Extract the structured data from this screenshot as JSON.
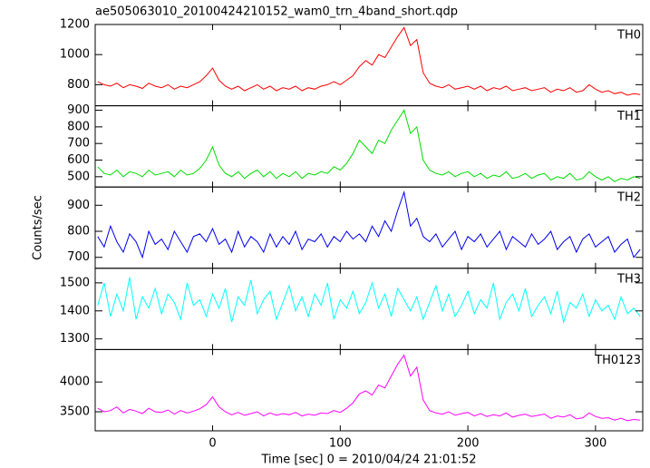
{
  "chart_data": {
    "type": "line",
    "title": "ae505063010_20100424210152_wam0_trn_4band_short.qdp",
    "x_label": "Time [sec] 0 = 2010/04/24 21:01:52",
    "y_label": "Counts/sec",
    "xlim": [
      -92,
      337
    ],
    "xticks": [
      0,
      100,
      200,
      300
    ],
    "x": [
      -90,
      -85,
      -80,
      -75,
      -70,
      -65,
      -60,
      -55,
      -50,
      -45,
      -40,
      -35,
      -30,
      -25,
      -20,
      -15,
      -10,
      -5,
      0,
      5,
      10,
      15,
      20,
      25,
      30,
      35,
      40,
      45,
      50,
      55,
      60,
      65,
      70,
      75,
      80,
      85,
      90,
      95,
      100,
      105,
      110,
      115,
      120,
      125,
      130,
      135,
      140,
      145,
      150,
      155,
      160,
      165,
      170,
      175,
      180,
      185,
      190,
      195,
      200,
      205,
      210,
      215,
      220,
      225,
      230,
      235,
      240,
      245,
      250,
      255,
      260,
      265,
      270,
      275,
      280,
      285,
      290,
      295,
      300,
      305,
      310,
      315,
      320,
      325,
      330,
      335
    ],
    "panels": [
      {
        "name": "TH0",
        "color": "#ff0000",
        "ylim": [
          660,
          1200
        ],
        "yticks": [
          800,
          1000,
          1200
        ],
        "values": [
          820,
          800,
          790,
          810,
          780,
          800,
          790,
          775,
          810,
          790,
          780,
          800,
          770,
          790,
          780,
          800,
          820,
          860,
          910,
          830,
          790,
          770,
          790,
          760,
          780,
          800,
          770,
          790,
          760,
          780,
          770,
          790,
          760,
          780,
          770,
          790,
          800,
          820,
          800,
          830,
          860,
          920,
          960,
          930,
          1000,
          980,
          1050,
          1120,
          1180,
          1060,
          1100,
          880,
          810,
          790,
          780,
          800,
          770,
          780,
          790,
          770,
          790,
          760,
          780,
          770,
          790,
          760,
          770,
          780,
          760,
          770,
          780,
          750,
          770,
          760,
          780,
          750,
          760,
          800,
          770,
          750,
          760,
          740,
          750,
          730,
          740,
          735
        ]
      },
      {
        "name": "TH1",
        "color": "#00dd00",
        "ylim": [
          438,
          927
        ],
        "yticks": [
          500,
          600,
          700,
          800,
          900
        ],
        "values": [
          560,
          520,
          510,
          540,
          500,
          530,
          520,
          500,
          540,
          510,
          520,
          530,
          500,
          540,
          510,
          520,
          550,
          600,
          680,
          570,
          520,
          500,
          530,
          490,
          520,
          540,
          500,
          530,
          490,
          520,
          500,
          530,
          490,
          520,
          510,
          530,
          520,
          560,
          540,
          580,
          640,
          720,
          680,
          640,
          720,
          700,
          780,
          840,
          900,
          760,
          800,
          600,
          540,
          520,
          510,
          530,
          500,
          520,
          530,
          500,
          520,
          490,
          510,
          500,
          530,
          490,
          500,
          520,
          490,
          510,
          520,
          480,
          500,
          490,
          520,
          480,
          490,
          530,
          500,
          480,
          500,
          470,
          490,
          480,
          500,
          490
        ]
      },
      {
        "name": "TH2",
        "color": "#0000ee",
        "ylim": [
          658,
          970
        ],
        "yticks": [
          700,
          800,
          900
        ],
        "values": [
          780,
          740,
          820,
          760,
          720,
          790,
          760,
          700,
          800,
          750,
          770,
          730,
          800,
          760,
          720,
          780,
          790,
          760,
          810,
          750,
          770,
          720,
          800,
          740,
          780,
          760,
          720,
          790,
          740,
          780,
          750,
          800,
          730,
          770,
          760,
          790,
          740,
          780,
          760,
          800,
          770,
          790,
          760,
          820,
          780,
          840,
          800,
          880,
          950,
          820,
          850,
          780,
          760,
          790,
          740,
          770,
          800,
          730,
          780,
          760,
          790,
          740,
          770,
          800,
          730,
          780,
          760,
          740,
          790,
          750,
          770,
          800,
          730,
          760,
          780,
          720,
          770,
          790,
          740,
          760,
          780,
          720,
          750,
          770,
          700,
          730
        ]
      },
      {
        "name": "TH3",
        "color": "#00ffff",
        "ylim": [
          1262,
          1552
        ],
        "yticks": [
          1300,
          1400,
          1500
        ],
        "values": [
          1420,
          1500,
          1380,
          1460,
          1400,
          1520,
          1370,
          1450,
          1410,
          1480,
          1390,
          1460,
          1430,
          1370,
          1500,
          1420,
          1440,
          1380,
          1460,
          1410,
          1480,
          1360,
          1450,
          1420,
          1510,
          1390,
          1440,
          1470,
          1370,
          1430,
          1490,
          1400,
          1450,
          1380,
          1460,
          1420,
          1500,
          1370,
          1440,
          1410,
          1470,
          1390,
          1430,
          1500,
          1410,
          1460,
          1380,
          1480,
          1440,
          1400,
          1450,
          1370,
          1430,
          1490,
          1400,
          1460,
          1380,
          1420,
          1470,
          1390,
          1440,
          1410,
          1500,
          1370,
          1430,
          1460,
          1400,
          1480,
          1380,
          1420,
          1450,
          1390,
          1470,
          1360,
          1430,
          1410,
          1460,
          1380,
          1440,
          1400,
          1420,
          1370,
          1450,
          1390,
          1410,
          1380
        ]
      },
      {
        "name": "TH0123",
        "color": "#ff00ff",
        "ylim": [
          3180,
          4545
        ],
        "yticks": [
          3500,
          4000
        ],
        "values": [
          3560,
          3500,
          3520,
          3580,
          3480,
          3540,
          3510,
          3470,
          3560,
          3500,
          3490,
          3530,
          3460,
          3520,
          3480,
          3510,
          3550,
          3620,
          3750,
          3580,
          3500,
          3450,
          3490,
          3440,
          3470,
          3500,
          3430,
          3480,
          3440,
          3470,
          3450,
          3490,
          3430,
          3460,
          3440,
          3480,
          3470,
          3520,
          3490,
          3560,
          3650,
          3800,
          3850,
          3780,
          3950,
          3900,
          4100,
          4300,
          4450,
          4100,
          4250,
          3700,
          3520,
          3480,
          3460,
          3500,
          3440,
          3470,
          3490,
          3430,
          3470,
          3420,
          3450,
          3430,
          3480,
          3410,
          3440,
          3460,
          3420,
          3440,
          3460,
          3390,
          3430,
          3410,
          3450,
          3380,
          3400,
          3480,
          3420,
          3390,
          3400,
          3360,
          3390,
          3350,
          3370,
          3360
        ]
      }
    ]
  }
}
